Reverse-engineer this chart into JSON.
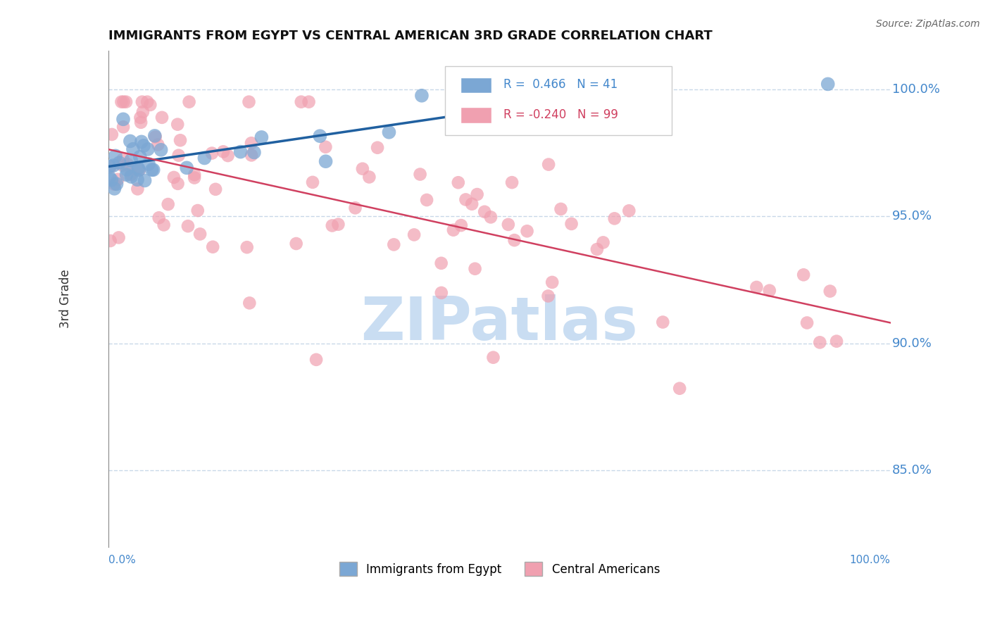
{
  "title": "IMMIGRANTS FROM EGYPT VS CENTRAL AMERICAN 3RD GRADE CORRELATION CHART",
  "source_text": "Source: ZipAtlas.com",
  "ylabel": "3rd Grade",
  "xlabel_bottom_left": "0.0%",
  "xlabel_bottom_right": "100.0%",
  "y_tick_labels": [
    "85.0%",
    "90.0%",
    "95.0%",
    "100.0%"
  ],
  "y_tick_values": [
    0.85,
    0.9,
    0.95,
    1.0
  ],
  "xlim": [
    0.0,
    1.0
  ],
  "ylim": [
    0.82,
    1.015
  ],
  "blue_R": 0.466,
  "blue_N": 41,
  "pink_R": -0.24,
  "pink_N": 99,
  "blue_color": "#7BA7D4",
  "blue_line_color": "#2060A0",
  "pink_color": "#F0A0B0",
  "pink_line_color": "#D04060",
  "watermark": "ZIPatlas",
  "watermark_color": "#C0D8F0",
  "legend_blue_label": "Immigrants from Egypt",
  "legend_pink_label": "Central Americans",
  "tick_label_color": "#4488CC",
  "grid_color": "#C8D8E8"
}
